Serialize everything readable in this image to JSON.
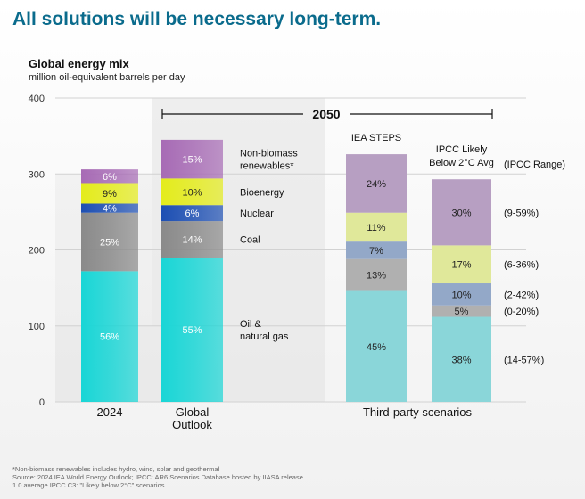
{
  "headline": "All solutions will be necessary long-term.",
  "footnotes": [
    "*Non-biomass renewables includes hydro, wind, solar and geothermal",
    "Source: 2024 IEA World Energy Outlook; IPCC: AR6 Scenarios Database hosted by IIASA release",
    "1.0 average IPCC C3: \"Likely below 2°C\" scenarios"
  ],
  "chart_data": {
    "type": "bar",
    "stacked": true,
    "title": "Global energy mix",
    "subtitle": "million oil-equivalent barrels per day",
    "ylim": [
      0,
      400
    ],
    "yticks": [
      0,
      100,
      200,
      300,
      400
    ],
    "period_label": "2050",
    "group_label": "Third-party scenarios",
    "range_header": "(IPCC Range)",
    "categories": [
      "2024",
      "Global Outlook",
      "IEA STEPS",
      "IPCC Likely Below 2°C Avg"
    ],
    "category_labels": [
      [
        "2024"
      ],
      [
        "Global",
        "Outlook"
      ],
      [
        "IEA STEPS"
      ],
      [
        "IPCC Likely",
        "Below 2°C Avg"
      ]
    ],
    "series": [
      {
        "name": "Oil & natural gas",
        "label_lines": [
          "Oil &",
          "natural gas"
        ],
        "values": [
          172,
          190,
          146,
          112
        ],
        "labels": [
          "56%",
          "55%",
          "45%",
          "38%"
        ]
      },
      {
        "name": "Coal",
        "label_lines": [
          "Coal"
        ],
        "values": [
          77,
          48,
          42,
          15
        ],
        "labels": [
          "25%",
          "14%",
          "13%",
          "5%"
        ]
      },
      {
        "name": "Nuclear",
        "label_lines": [
          "Nuclear"
        ],
        "values": [
          12,
          21,
          23,
          29
        ],
        "labels": [
          "4%",
          "6%",
          "7%",
          "10%"
        ]
      },
      {
        "name": "Bioenergy",
        "label_lines": [
          "Bioenergy"
        ],
        "values": [
          27,
          35,
          38,
          50
        ],
        "labels": [
          "9%",
          "10%",
          "11%",
          "17%"
        ]
      },
      {
        "name": "Non-biomass renewables*",
        "label_lines": [
          "Non-biomass",
          "renewables*"
        ],
        "values": [
          18,
          51,
          77,
          87
        ],
        "labels": [
          "6%",
          "15%",
          "24%",
          "30%"
        ]
      }
    ],
    "ipcc_ranges": [
      "(14-57%)",
      "(0-20%)",
      "(2-42%)",
      "(6-36%)",
      "(9-59%)"
    ],
    "colors": {
      "first_two_columns": [
        "#19d6d6",
        "#8a8a8a",
        "#1d4fb3",
        "#e4ec1c",
        "#a76bb5"
      ],
      "third_party": [
        "#8ad6d9",
        "#b0b0b0",
        "#93a8c8",
        "#e0e89a",
        "#b79fc2"
      ],
      "axis_text": "#333333",
      "highlight_band": "#e2e2e2"
    }
  }
}
